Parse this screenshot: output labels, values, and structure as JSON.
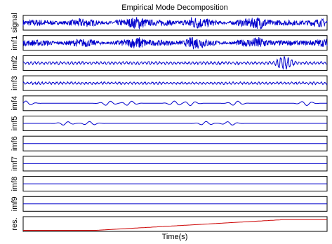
{
  "chart_data": {
    "type": "line",
    "title": "Empirical Mode Decomposition",
    "xlabel": "Time(s)",
    "ylabel": "",
    "grid": false,
    "legend": "none",
    "x_ticks_shown": false,
    "y_ticks_shown": false,
    "rows": [
      {
        "label": "signal",
        "color": "#0000cc",
        "pattern": "broadband-noise",
        "amplitude": 1.0,
        "bursts": [
          0.38,
          0.56,
          0.78
        ]
      },
      {
        "label": "imf1",
        "color": "#0000cc",
        "pattern": "broadband-noise",
        "amplitude": 0.95,
        "bursts": [
          0.38,
          0.56,
          0.78
        ]
      },
      {
        "label": "imf2",
        "color": "#0000cc",
        "pattern": "oscillation",
        "amplitude": 0.25,
        "bursts": [
          0.86
        ]
      },
      {
        "label": "imf3",
        "color": "#0000cc",
        "pattern": "oscillation",
        "amplitude": 0.22,
        "bursts": []
      },
      {
        "label": "imf4",
        "color": "#0000cc",
        "pattern": "sparse-wiggles",
        "amplitude": 0.12,
        "bursts": [
          0.01,
          0.28,
          0.35,
          0.5,
          0.55,
          0.7,
          0.93
        ]
      },
      {
        "label": "imf5",
        "color": "#0000cc",
        "pattern": "sparse-wiggles",
        "amplitude": 0.1,
        "bursts": [
          0.14,
          0.22,
          0.6,
          0.68
        ]
      },
      {
        "label": "imf6",
        "color": "#0000cc",
        "pattern": "flat",
        "amplitude": 0.0,
        "bursts": []
      },
      {
        "label": "imf7",
        "color": "#0000cc",
        "pattern": "flat",
        "amplitude": 0.0,
        "bursts": []
      },
      {
        "label": "imf8",
        "color": "#0000cc",
        "pattern": "flat",
        "amplitude": 0.0,
        "bursts": []
      },
      {
        "label": "imf9",
        "color": "#0000cc",
        "pattern": "flat",
        "amplitude": 0.0,
        "bursts": []
      },
      {
        "label": "res.",
        "color": "#cc0000",
        "pattern": "trend",
        "amplitude": 0.0,
        "bursts": [],
        "trend": [
          [
            0.0,
            0.0
          ],
          [
            0.24,
            0.0
          ],
          [
            0.86,
            0.85
          ],
          [
            1.0,
            0.85
          ]
        ]
      }
    ]
  }
}
